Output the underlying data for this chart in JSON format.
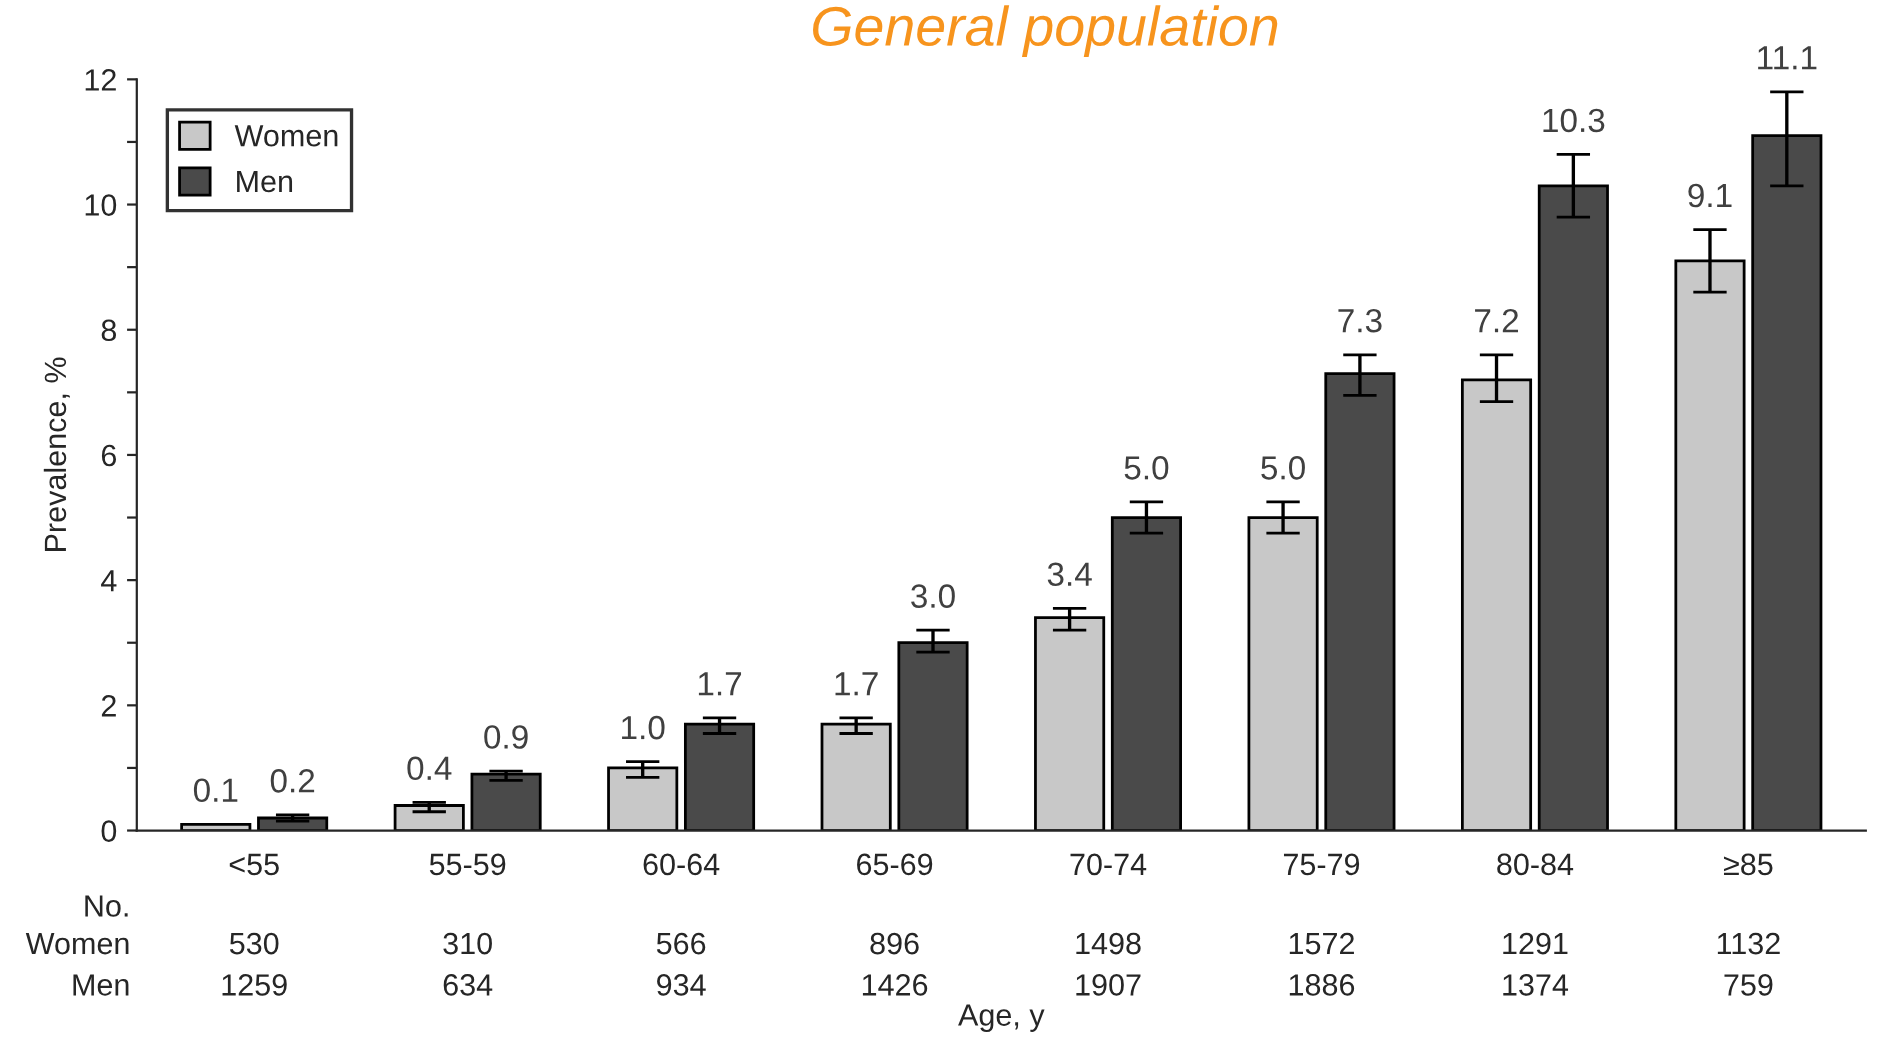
{
  "chart_data": {
    "type": "bar",
    "title": "General population",
    "xlabel": "Age, y",
    "ylabel": "Prevalence, %",
    "categories": [
      "<55",
      "55-59",
      "60-64",
      "65-69",
      "70-74",
      "75-79",
      "80-84",
      "≥85"
    ],
    "series": [
      {
        "name": "Women",
        "color": "#c8c8c8",
        "values": [
          0.1,
          0.4,
          1.0,
          1.7,
          3.4,
          5.0,
          7.2,
          9.1
        ],
        "value_labels": [
          "0.1",
          "0.4",
          "1.0",
          "1.7",
          "3.4",
          "5.0",
          "7.2",
          "9.1"
        ],
        "errors": [
          null,
          [
            0.3,
            0.45
          ],
          [
            0.85,
            1.1
          ],
          [
            1.55,
            1.8
          ],
          [
            3.2,
            3.55
          ],
          [
            4.75,
            5.25
          ],
          [
            6.85,
            7.6
          ],
          [
            8.6,
            9.6
          ]
        ]
      },
      {
        "name": "Men",
        "color": "#4a4a4a",
        "values": [
          0.2,
          0.9,
          1.7,
          3.0,
          5.0,
          7.3,
          10.3,
          11.1
        ],
        "value_labels": [
          "0.2",
          "0.9",
          "1.7",
          "3.0",
          "5.0",
          "7.3",
          "10.3",
          "11.1"
        ],
        "errors": [
          [
            0.15,
            0.25
          ],
          [
            0.8,
            0.95
          ],
          [
            1.55,
            1.8
          ],
          [
            2.85,
            3.2
          ],
          [
            4.75,
            5.25
          ],
          [
            6.95,
            7.6
          ],
          [
            9.8,
            10.8
          ],
          [
            10.3,
            11.8
          ]
        ]
      }
    ],
    "ylim": [
      0,
      12
    ],
    "yticks": [
      0,
      {
        "value": 1,
        "label": null
      },
      2,
      {
        "value": 3,
        "label": null
      },
      4,
      {
        "value": 5,
        "label": null
      },
      6,
      {
        "value": 7,
        "label": null
      },
      8,
      {
        "value": 9,
        "label": null
      },
      10,
      {
        "value": 11,
        "label": null
      },
      12
    ],
    "legend": "top left",
    "grid": false,
    "annotations": [
      "No.",
      "Women",
      "530",
      "310",
      "566",
      "896",
      "1498",
      "1572",
      "1291",
      "1132",
      "Men",
      "1259",
      "634",
      "934",
      "1426",
      "1907",
      "1886",
      "1374",
      "759"
    ]
  }
}
